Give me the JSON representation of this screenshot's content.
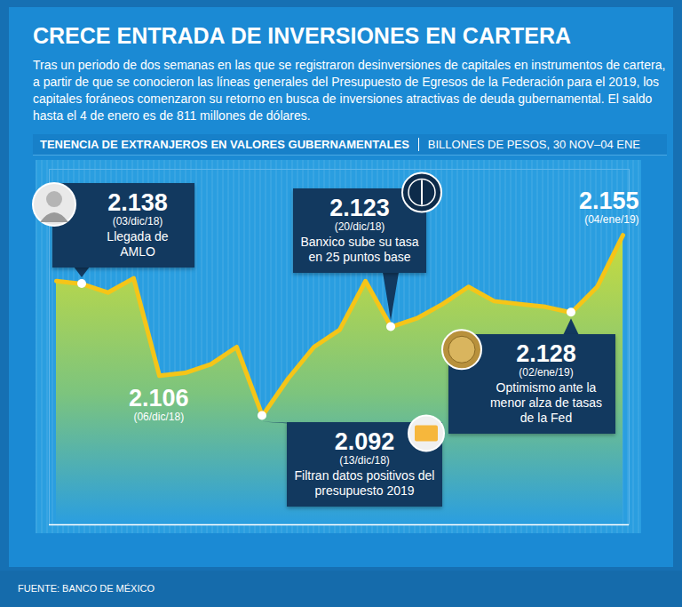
{
  "chart_data": {
    "type": "area",
    "title": "CRECE ENTRADA DE INVERSIONES EN CARTERA",
    "subtitle": "Tras un periodo de dos semanas en las que se registraron desinversiones de capitales en instrumentos de cartera, a partir de que se conocieron las líneas generales del Presupuesto de Egresos de la Federación para el 2019, los capitales foráneos comenzaron su retorno en busca de inversiones atractivas de deuda gubernamental. El saldo hasta el 4 de enero es de 811 millones de dólares.",
    "section_title": "TENENCIA DE EXTRANJEROS EN VALORES GUBERNAMENTALES",
    "y_label": "BILLONES DE PESOS, 30 NOV–04 ENE",
    "source": "FUENTE: BANCO DE MÉXICO",
    "categories": [
      null,
      "(03/dic/18)",
      null,
      null,
      "(06/dic/18)",
      null,
      null,
      null,
      "(13/dic/18)",
      null,
      null,
      null,
      null,
      "(20/dic/18)",
      null,
      null,
      null,
      null,
      null,
      null,
      "(02/ene/19)",
      null,
      "(04/ene/19)"
    ],
    "values": [
      2.139,
      2.138,
      2.135,
      2.14,
      2.106,
      2.107,
      2.11,
      2.116,
      2.092,
      2.105,
      2.116,
      2.122,
      2.139,
      2.123,
      2.126,
      2.131,
      2.137,
      2.132,
      2.131,
      2.13,
      2.128,
      2.137,
      2.155
    ],
    "color": "#f5c518",
    "ylim": [
      2.054,
      2.178
    ],
    "yticks": [],
    "grid": false,
    "tick_labels": false,
    "annotations": [
      {
        "x": "(03/dic/18)",
        "label": "2.138",
        "text": "Llegada de AMLO"
      },
      {
        "x": "(06/dic/18)",
        "label": "2.106"
      },
      {
        "x": "(13/dic/18)",
        "label": "2.092",
        "text": "Filtran datos positivos del presupuesto 2019"
      },
      {
        "x": "(20/dic/18)",
        "label": "2.123",
        "text": "Banxico sube su tasa en 25 puntos base"
      },
      {
        "x": "(02/ene/19)",
        "label": "2.128",
        "text": "Optimismo ante la menor alza de tasas de la Fed"
      },
      {
        "x": "(04/ene/19)",
        "label": "2.155"
      }
    ]
  }
}
